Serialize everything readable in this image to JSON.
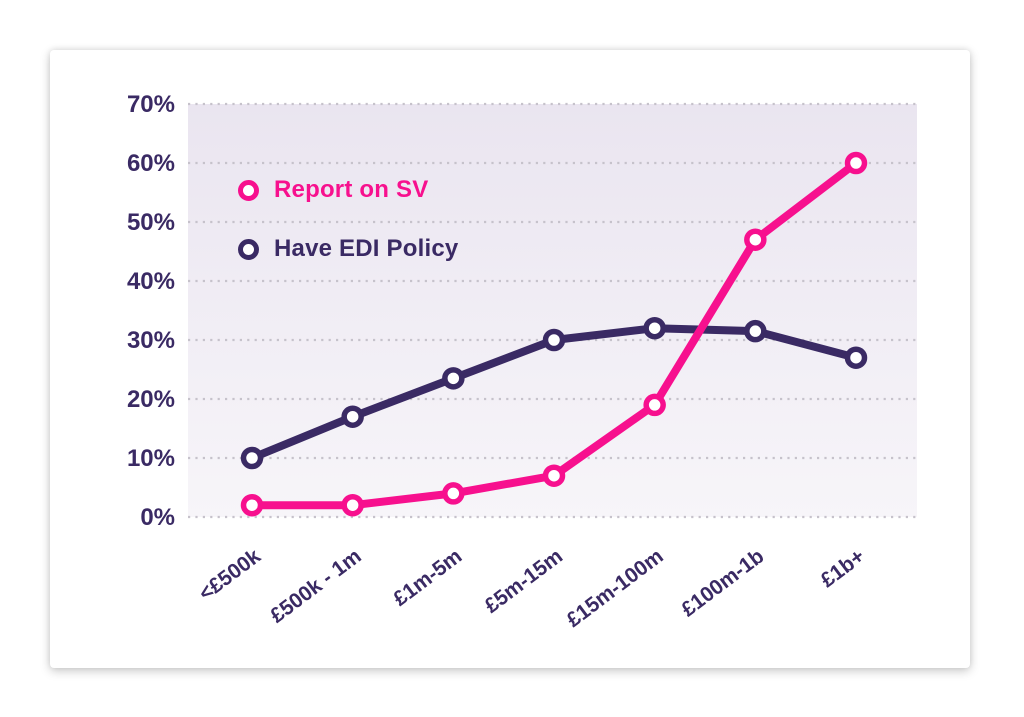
{
  "page": {
    "background": "#FFFFFF"
  },
  "card": {
    "background": "#FFFFFF"
  },
  "chart_data": {
    "type": "line",
    "title": "",
    "xlabel": "",
    "ylabel": "",
    "categories": [
      "<£500k",
      "£500k - 1m",
      "£1m-5m",
      "£5m-15m",
      "£15m-100m",
      "£100m-1b",
      "£1b+"
    ],
    "series": [
      {
        "name": "Report on SV",
        "color": "#F7108E",
        "values": [
          2,
          2,
          4,
          7,
          19,
          47,
          60
        ]
      },
      {
        "name": "Have EDI Policy",
        "color": "#3A2A64",
        "values": [
          10,
          17,
          23.5,
          30,
          32,
          31.5,
          27
        ]
      }
    ],
    "ylim": [
      0,
      70
    ],
    "y_ticks": [
      "0%",
      "10%",
      "20%",
      "30%",
      "40%",
      "50%",
      "60%",
      "70%"
    ],
    "y_tick_step": 10,
    "grid": "dotted-horizontal",
    "legend_position": "inside-top-left",
    "colors": {
      "axis_text": "#3A2A64",
      "grid_dots": "#C6C2CB",
      "plot_bg_top": "#EAE5F0",
      "plot_bg_bottom": "#F7F5F9",
      "marker_fill": "#FFFFFF"
    }
  }
}
